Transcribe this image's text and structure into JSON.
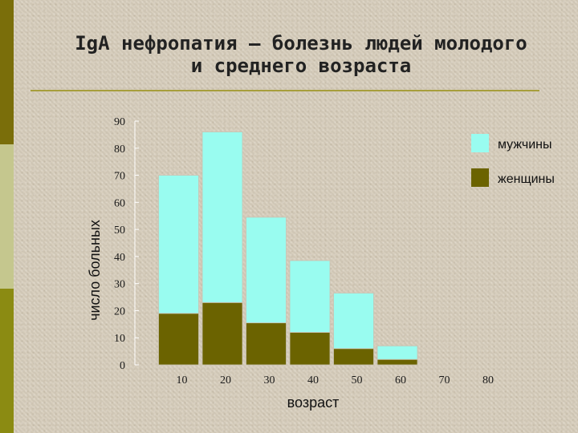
{
  "slide": {
    "title_line1": "IgA нефропатия – болезнь людей молодого",
    "title_line2": "и среднего возраста"
  },
  "chart_data": {
    "type": "bar",
    "stacked": true,
    "categories": [
      "10",
      "20",
      "30",
      "40",
      "50",
      "60",
      "70",
      "80"
    ],
    "series": [
      {
        "name": "женщины",
        "color": "#6b6300",
        "values": [
          19,
          23,
          15.5,
          12,
          6,
          2,
          0,
          0
        ]
      },
      {
        "name": "мужчины",
        "color": "#99fcf0",
        "values": [
          51,
          63,
          39,
          26.5,
          20.5,
          5,
          0,
          0
        ]
      }
    ],
    "xlabel": "возраст",
    "ylabel": "число больных",
    "ylim": [
      0,
      90
    ],
    "yticks": [
      0,
      10,
      20,
      30,
      40,
      50,
      60,
      70,
      80,
      90
    ],
    "legend_position": "top-right",
    "grid": false
  }
}
